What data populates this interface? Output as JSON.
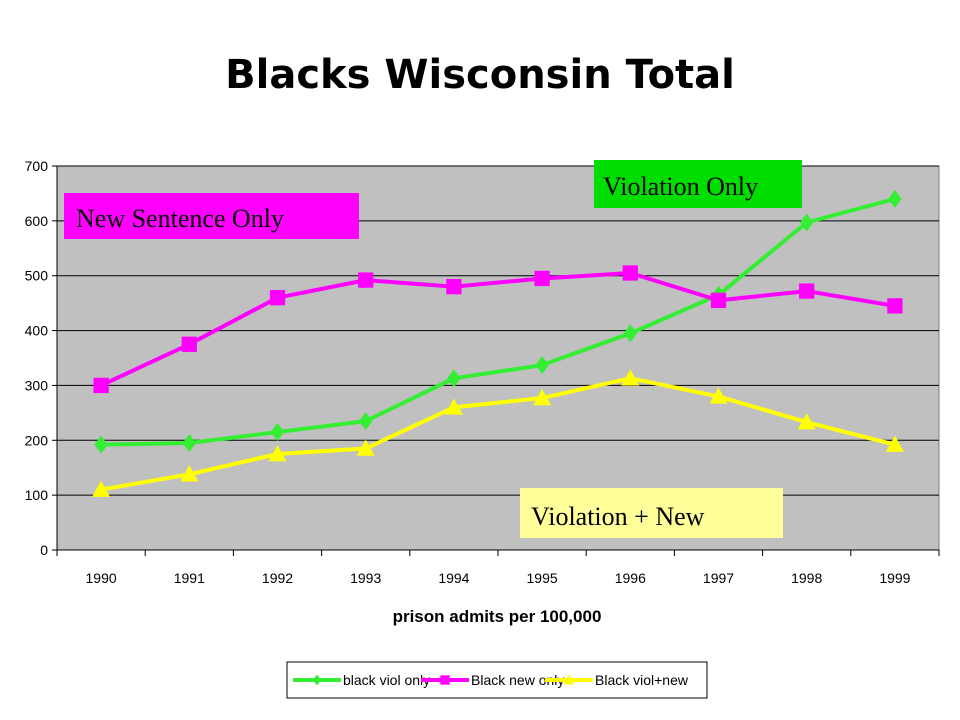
{
  "chart_data": {
    "type": "line",
    "title": "Blacks Wisconsin Total",
    "xlabel": "prison admits per 100,000",
    "ylabel": "",
    "categories": [
      "1990",
      "1991",
      "1992",
      "1993",
      "1994",
      "1995",
      "1996",
      "1997",
      "1998",
      "1999"
    ],
    "ylim": [
      0,
      700
    ],
    "yticks": [
      0,
      100,
      200,
      300,
      400,
      500,
      600,
      700
    ],
    "grid": true,
    "plot_background": "#c0c0c0",
    "legend_position": "bottom",
    "series": [
      {
        "name": "black viol only",
        "color": "#33ee33",
        "marker": "diamond",
        "values": [
          192,
          195,
          215,
          235,
          313,
          337,
          395,
          465,
          597,
          640
        ]
      },
      {
        "name": "Black new  only",
        "color": "#ff00ff",
        "marker": "square",
        "values": [
          300,
          375,
          460,
          492,
          480,
          495,
          505,
          455,
          472,
          445
        ]
      },
      {
        "name": "Black viol+new",
        "color": "#ffff00",
        "marker": "triangle",
        "values": [
          110,
          138,
          175,
          185,
          260,
          277,
          313,
          280,
          233,
          192
        ]
      }
    ],
    "annotations": [
      {
        "text": "Violation Only",
        "background": "#00dd00"
      },
      {
        "text": "New Sentence Only",
        "background": "#ff00ff"
      },
      {
        "text": "Violation + New",
        "background": "#ffff99"
      }
    ]
  }
}
